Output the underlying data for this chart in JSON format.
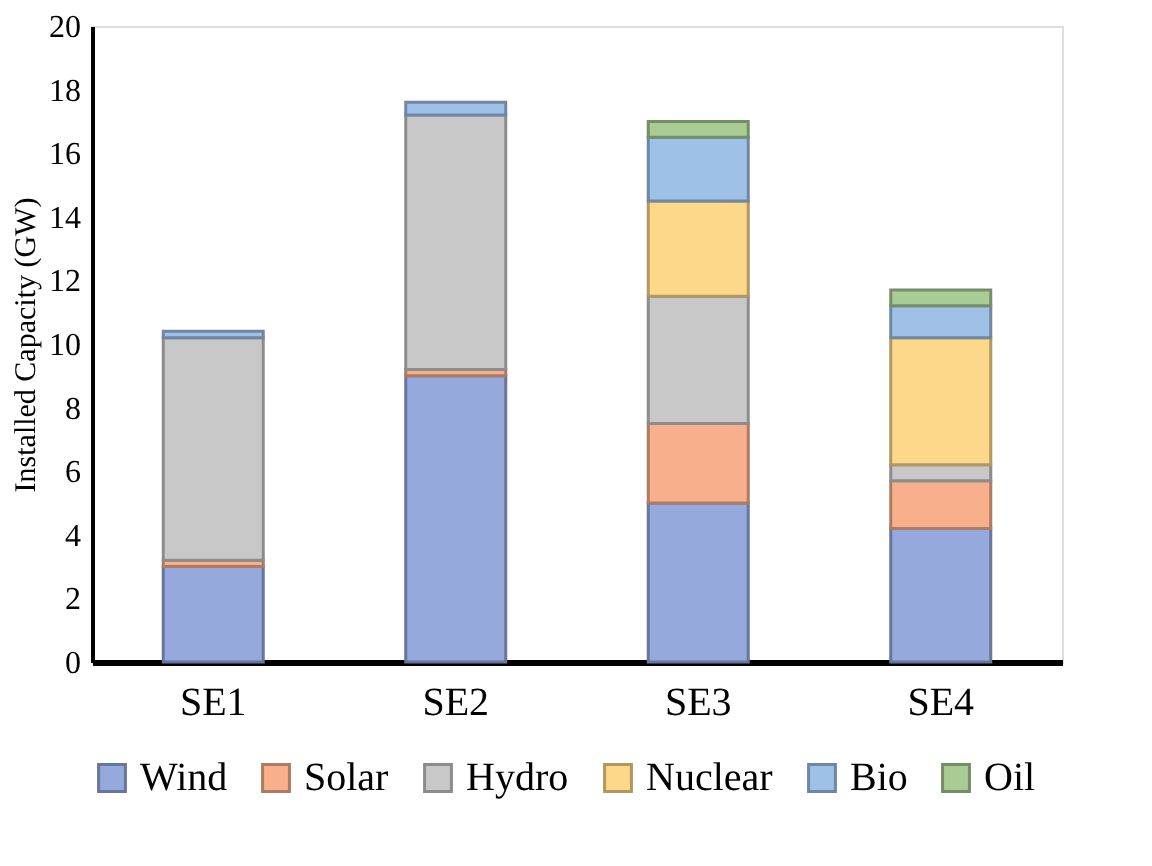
{
  "chart_data": {
    "type": "bar",
    "stacked": true,
    "ylabel": "Installed Capacity (GW)",
    "categories": [
      "SE1",
      "SE2",
      "SE3",
      "SE4"
    ],
    "series": [
      {
        "name": "Wind",
        "color": "#95a9dc",
        "values": [
          3.0,
          9.0,
          5.0,
          4.2
        ]
      },
      {
        "name": "Solar",
        "color": "#f8b08c",
        "values": [
          0.2,
          0.2,
          2.5,
          1.5
        ]
      },
      {
        "name": "Hydro",
        "color": "#c8c8c8",
        "values": [
          7.0,
          8.0,
          4.0,
          0.5
        ]
      },
      {
        "name": "Nuclear",
        "color": "#fdd88a",
        "values": [
          null,
          null,
          3.0,
          4.0
        ]
      },
      {
        "name": "Bio",
        "color": "#9fc1e8",
        "values": [
          0.2,
          0.4,
          2.0,
          1.0
        ]
      },
      {
        "name": "Oil",
        "color": "#a9cc95",
        "values": [
          null,
          null,
          0.5,
          0.5
        ]
      }
    ],
    "ylim": [
      0,
      20
    ],
    "yticks": [
      0,
      2,
      4,
      6,
      8,
      10,
      12,
      14,
      16,
      18,
      20
    ],
    "grid": false,
    "legend": "bottom"
  }
}
